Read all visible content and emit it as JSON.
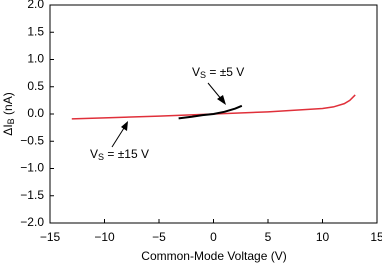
{
  "chart_data": {
    "type": "line",
    "x_label": "Common-Mode Voltage (V)",
    "y_label": {
      "main": "ΔI",
      "sub": "B",
      "rest": " (nA)"
    },
    "xlim": [
      -15,
      15
    ],
    "ylim": [
      -2,
      2
    ],
    "xticks": [
      {
        "value": -15,
        "label": "−15"
      },
      {
        "value": -10,
        "label": "−10"
      },
      {
        "value": -5,
        "label": "−5"
      },
      0,
      5,
      10,
      15
    ],
    "yticks": [
      {
        "value": 2,
        "label": "2.0"
      },
      {
        "value": 1.5,
        "label": "1.5"
      },
      {
        "value": 1,
        "label": "1.0"
      },
      {
        "value": 0.5,
        "label": "0.5"
      },
      {
        "value": 0,
        "label": "0.0"
      },
      {
        "value": -0.5,
        "label": "−0.5"
      },
      {
        "value": -1,
        "label": "−1.0"
      },
      {
        "value": -1.5,
        "label": "−1.5"
      },
      {
        "value": -2,
        "label": "−2.0"
      }
    ],
    "grid": false,
    "series": [
      {
        "label": {
          "main": "V",
          "sub": "S",
          "rest": " = ±15 V"
        },
        "color": "#e0303a",
        "x": [
          -13,
          -10,
          -5,
          0,
          5,
          10,
          11,
          12,
          12.5,
          13
        ],
        "values": [
          -0.09,
          -0.07,
          -0.04,
          0,
          0.04,
          0.1,
          0.13,
          0.19,
          0.25,
          0.35
        ]
      },
      {
        "label": {
          "main": "V",
          "sub": "S",
          "rest": " = ±5 V"
        },
        "color": "#000000",
        "x": [
          -3.2,
          -2,
          -1,
          0,
          1,
          2,
          2.6
        ],
        "values": [
          -0.08,
          -0.05,
          -0.02,
          0,
          0.04,
          0.1,
          0.15
        ]
      }
    ]
  }
}
